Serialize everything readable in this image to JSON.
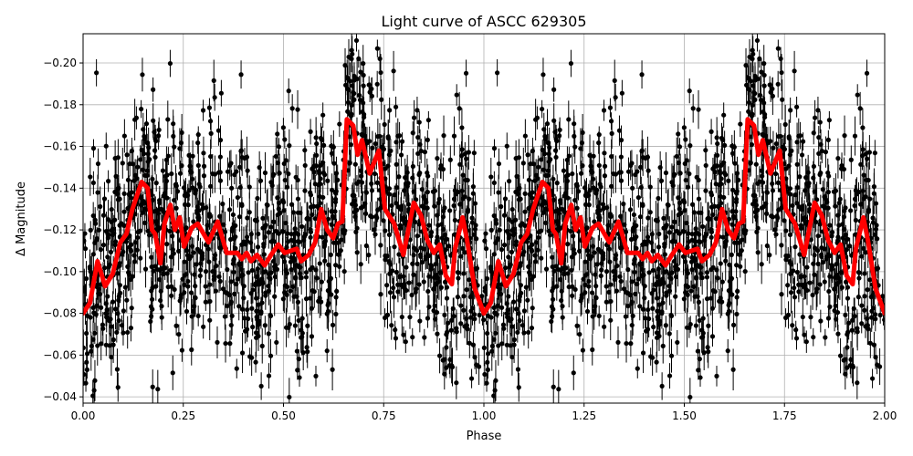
{
  "chart_data": {
    "type": "scatter",
    "title": "Light curve of ASCC 629305",
    "xlabel": "Phase",
    "ylabel": "Δ Magnitude",
    "xlim": [
      0.0,
      2.0
    ],
    "ylim": [
      -0.214,
      -0.037
    ],
    "y_inverted": true,
    "grid": true,
    "xticks": [
      "0.00",
      "0.25",
      "0.50",
      "0.75",
      "1.00",
      "1.25",
      "1.50",
      "1.75",
      "2.00"
    ],
    "yticks": [
      "-0.20",
      "-0.18",
      "-0.16",
      "-0.14",
      "-0.12",
      "-0.10",
      "-0.08",
      "-0.06",
      "-0.04"
    ],
    "observations": {
      "color": "#000000",
      "marker": "dot with error bar",
      "phase_folded_twice": true
    },
    "binned_curve": {
      "color": "#ff0000",
      "period_repeat": [
        0,
        1
      ],
      "x": [
        0.0,
        0.017,
        0.036,
        0.055,
        0.074,
        0.093,
        0.108,
        0.123,
        0.146,
        0.161,
        0.172,
        0.18,
        0.193,
        0.203,
        0.218,
        0.229,
        0.241,
        0.252,
        0.271,
        0.286,
        0.313,
        0.336,
        0.358,
        0.385,
        0.396,
        0.408,
        0.419,
        0.434,
        0.453,
        0.469,
        0.487,
        0.503,
        0.533,
        0.544,
        0.563,
        0.579,
        0.594,
        0.609,
        0.624,
        0.636,
        0.647,
        0.658,
        0.674,
        0.685,
        0.696,
        0.715,
        0.738,
        0.753,
        0.776,
        0.799,
        0.825,
        0.843,
        0.859,
        0.875,
        0.89,
        0.905,
        0.92,
        0.928,
        0.947,
        0.958,
        0.977,
        1.0
      ],
      "y": [
        -0.08,
        -0.085,
        -0.105,
        -0.093,
        -0.099,
        -0.114,
        -0.118,
        -0.13,
        -0.143,
        -0.14,
        -0.12,
        -0.118,
        -0.104,
        -0.123,
        -0.132,
        -0.12,
        -0.126,
        -0.112,
        -0.121,
        -0.123,
        -0.114,
        -0.124,
        -0.109,
        -0.109,
        -0.106,
        -0.109,
        -0.105,
        -0.108,
        -0.103,
        -0.108,
        -0.113,
        -0.109,
        -0.111,
        -0.105,
        -0.108,
        -0.114,
        -0.13,
        -0.12,
        -0.116,
        -0.123,
        -0.124,
        -0.173,
        -0.17,
        -0.156,
        -0.163,
        -0.147,
        -0.158,
        -0.13,
        -0.123,
        -0.108,
        -0.133,
        -0.127,
        -0.115,
        -0.109,
        -0.113,
        -0.098,
        -0.094,
        -0.111,
        -0.126,
        -0.115,
        -0.092,
        -0.08
      ]
    }
  }
}
